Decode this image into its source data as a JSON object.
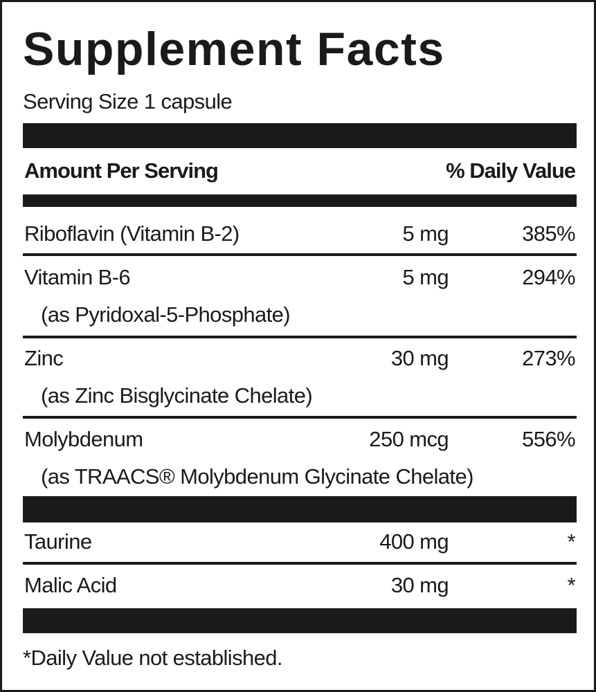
{
  "header": {
    "title": "Supplement Facts",
    "serving_size": "Serving Size 1 capsule"
  },
  "columns": {
    "amount": "Amount Per Serving",
    "daily_value": "% Daily Value"
  },
  "rows": [
    {
      "name": "Riboflavin (Vitamin B-2)",
      "amount": "5 mg",
      "daily_value": "385%"
    },
    {
      "name": "Vitamin B-6",
      "source": "(as Pyridoxal-5-Phosphate)",
      "amount": "5 mg",
      "daily_value": "294%"
    },
    {
      "name": "Zinc",
      "source": "(as Zinc Bisglycinate Chelate)",
      "amount": "30 mg",
      "daily_value": "273%"
    },
    {
      "name": "Molybdenum",
      "source": "(as TRAACS® Molybdenum Glycinate Chelate)",
      "amount": "250 mcg",
      "daily_value": "556%"
    },
    {
      "name": "Taurine",
      "amount": "400 mg",
      "daily_value": "*"
    },
    {
      "name": "Malic Acid",
      "amount": "30 mg",
      "daily_value": "*"
    }
  ],
  "footnote": "*Daily Value not established."
}
